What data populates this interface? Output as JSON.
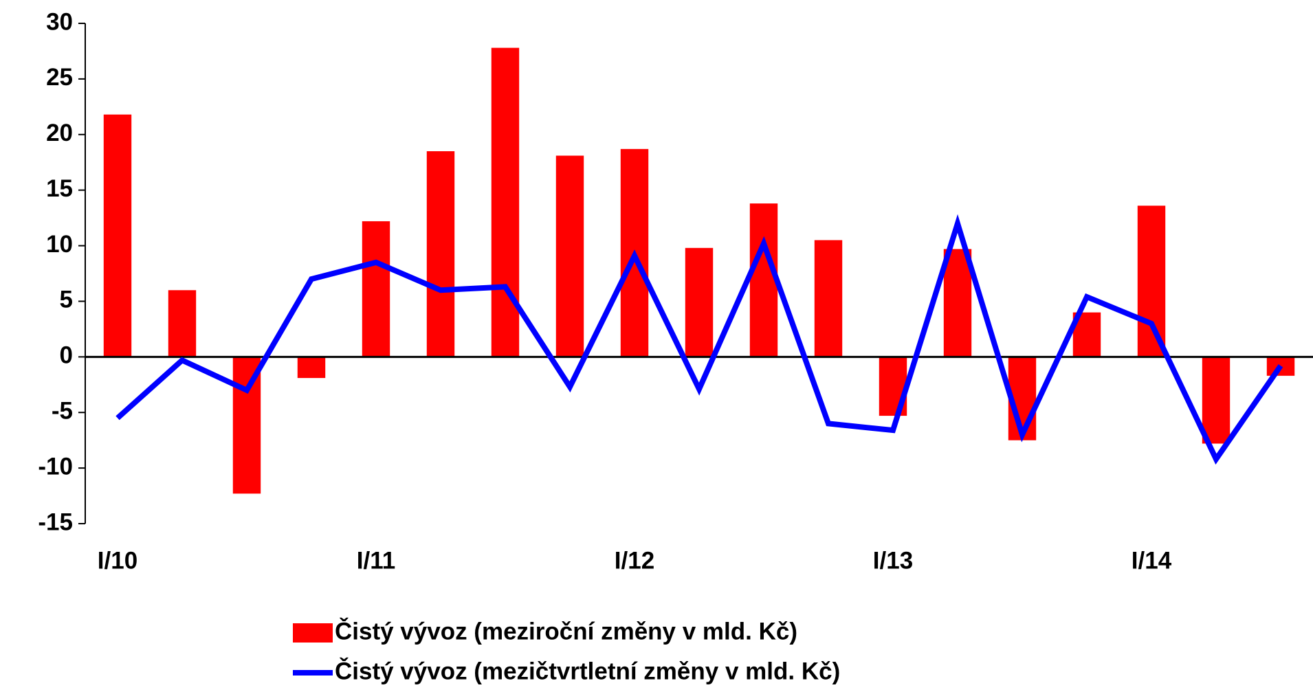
{
  "chart_data": {
    "type": "bar-line",
    "categories": [
      "I/10",
      null,
      null,
      null,
      "I/11",
      null,
      null,
      null,
      "I/12",
      null,
      null,
      null,
      "I/13",
      null,
      null,
      null,
      "I/14",
      null,
      null
    ],
    "series": [
      {
        "name": "Čistý vývoz (meziroční změny v mld. Kč)",
        "type": "bar",
        "color": "#ff0000",
        "values": [
          21.8,
          6,
          -12.3,
          -1.9,
          12.2,
          18.5,
          27.8,
          18.1,
          18.7,
          9.8,
          13.8,
          10.5,
          -5.3,
          9.7,
          -7.5,
          4,
          13.6,
          -7.8,
          -1.7
        ]
      },
      {
        "name": "Čistý vývoz (mezičtvrtletní změny v mld. Kč)",
        "type": "line",
        "color": "#0000ff",
        "values": [
          -5.5,
          -0.3,
          -3.0,
          7.0,
          8.5,
          6.0,
          6.3,
          -2.7,
          9.1,
          -2.9,
          10.2,
          -6.0,
          -6.6,
          12.0,
          -7.0,
          5.4,
          3.0,
          -9.2,
          -0.8
        ]
      }
    ],
    "ylim": [
      -15,
      30
    ],
    "yticks": [
      -15,
      -10,
      -5,
      0,
      5,
      10,
      15,
      20,
      25,
      30
    ],
    "grid": false,
    "legend": "bottom"
  }
}
